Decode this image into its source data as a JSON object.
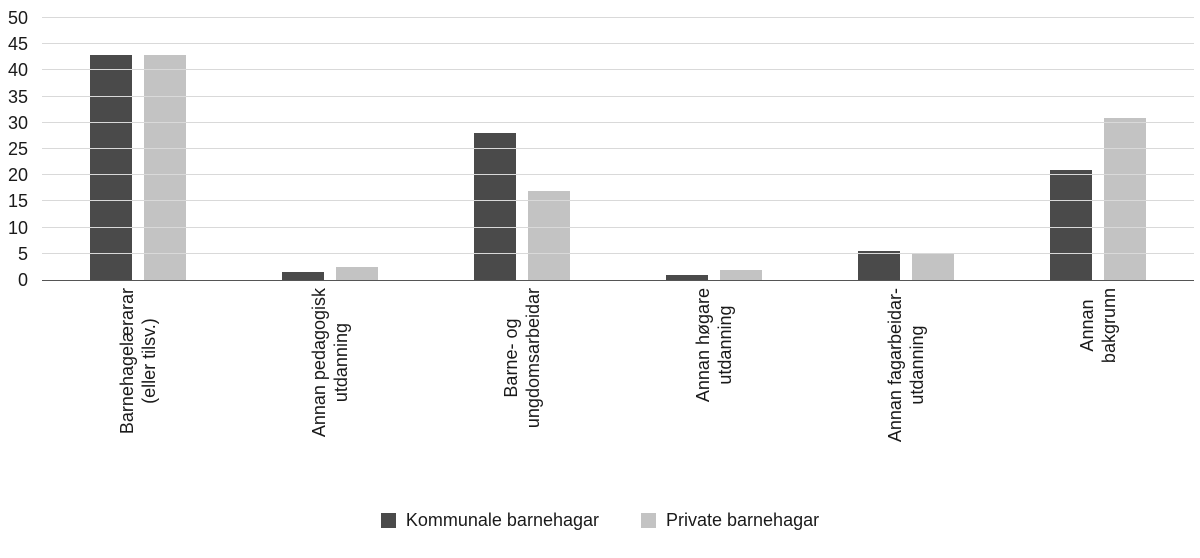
{
  "chart_data": {
    "type": "bar",
    "title": "",
    "xlabel": "",
    "ylabel": "",
    "ylim": [
      0,
      50
    ],
    "ytick_step": 5,
    "grid": true,
    "legend_position": "bottom",
    "colors": {
      "kommunale": "#4a4a4a",
      "private": "#c3c3c3",
      "gridline": "#d9d9d9",
      "axis": "#555555"
    },
    "categories": [
      [
        "Barnehagelærarar",
        "(eller tilsv.)"
      ],
      [
        "Annan pedagogisk",
        "utdanning"
      ],
      [
        "Barne- og",
        "ungdomsarbeidar"
      ],
      [
        "Annan høgare",
        "utdanning"
      ],
      [
        "Annan fagarbeidar-",
        "utdanning"
      ],
      [
        "Annan",
        "bakgrunn"
      ]
    ],
    "series": [
      {
        "name": "Kommunale barnehagar",
        "color": "#4a4a4a",
        "values": [
          43,
          1.5,
          28,
          1,
          5.5,
          21
        ]
      },
      {
        "name": "Private barnehagar",
        "color": "#c3c3c3",
        "values": [
          43,
          2.5,
          17,
          2,
          5,
          31
        ]
      }
    ]
  }
}
